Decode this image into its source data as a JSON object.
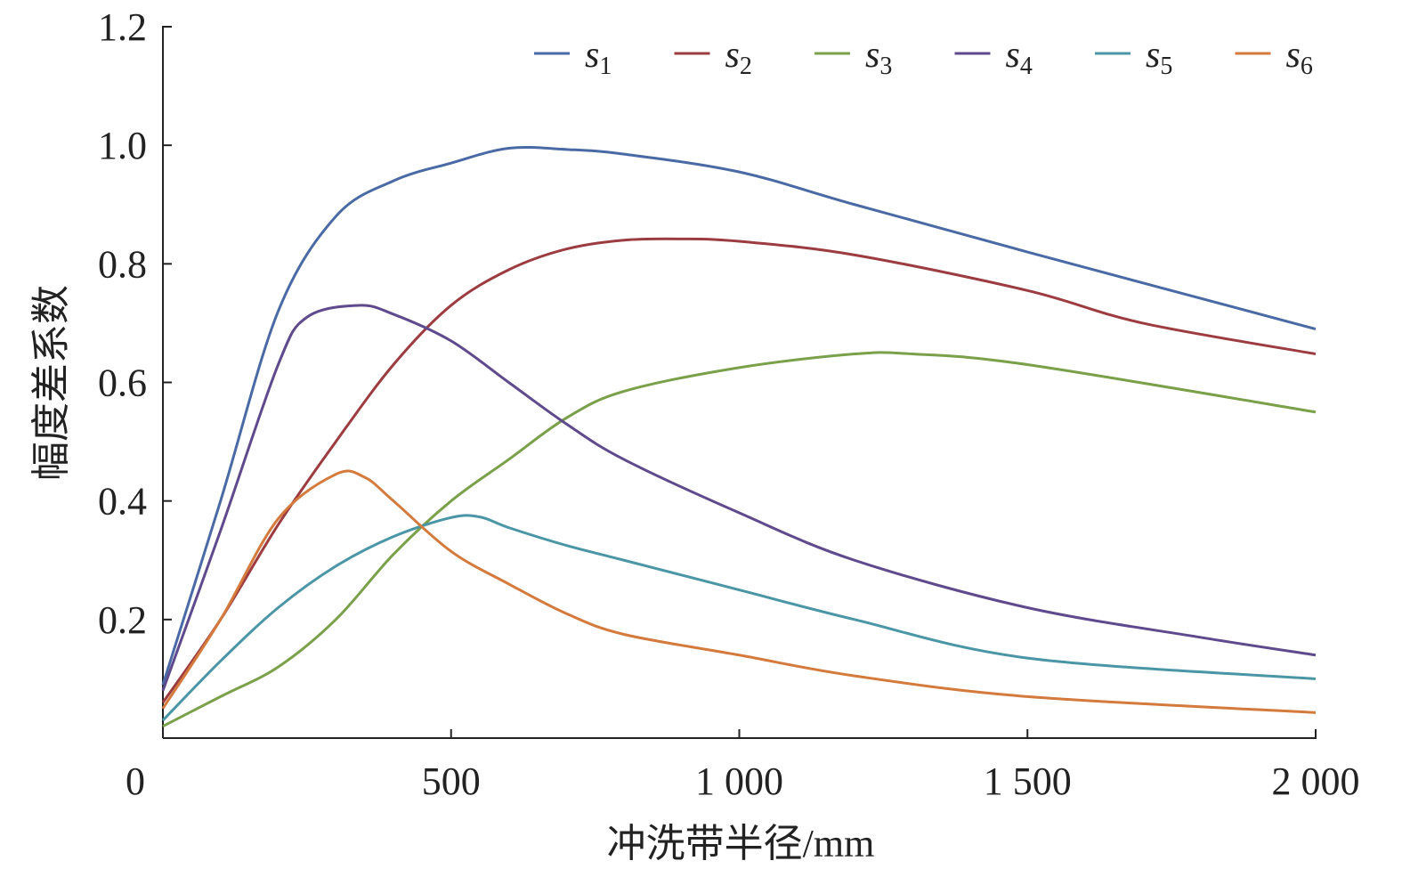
{
  "chart_data": {
    "type": "line",
    "title": "",
    "xlabel": "冲洗带半径/mm",
    "ylabel": "幅度差系数",
    "xlim": [
      0,
      2000
    ],
    "ylim": [
      0,
      1.2
    ],
    "xticks": [
      {
        "value": 0,
        "label": "0"
      },
      {
        "value": 500,
        "label": "500"
      },
      {
        "value": 1000,
        "label": "1 000"
      },
      {
        "value": 1500,
        "label": "1 500"
      },
      {
        "value": 2000,
        "label": "2 000"
      }
    ],
    "yticks": [
      {
        "value": 0.2,
        "label": "0.2"
      },
      {
        "value": 0.4,
        "label": "0.4"
      },
      {
        "value": 0.6,
        "label": "0.6"
      },
      {
        "value": 0.8,
        "label": "0.8"
      },
      {
        "value": 1.0,
        "label": "1.0"
      },
      {
        "value": 1.2,
        "label": "1.2"
      }
    ],
    "grid": false,
    "legend_position": "top-right",
    "series": [
      {
        "name": "s",
        "sub": "1",
        "color": "#4a6aa5",
        "x": [
          0,
          100,
          200,
          300,
          400,
          500,
          600,
          700,
          800,
          1000,
          1200,
          1500,
          2000
        ],
        "y": [
          0.09,
          0.4,
          0.72,
          0.88,
          0.94,
          0.97,
          0.995,
          0.993,
          0.985,
          0.955,
          0.9,
          0.82,
          0.69
        ]
      },
      {
        "name": "s",
        "sub": "2",
        "color": "#9c3c40",
        "x": [
          0,
          100,
          200,
          300,
          400,
          500,
          600,
          700,
          800,
          900,
          1000,
          1200,
          1500,
          1700,
          2000
        ],
        "y": [
          0.06,
          0.2,
          0.36,
          0.5,
          0.63,
          0.73,
          0.79,
          0.825,
          0.84,
          0.842,
          0.838,
          0.815,
          0.755,
          0.7,
          0.648
        ]
      },
      {
        "name": "s",
        "sub": "3",
        "color": "#7aa04a",
        "x": [
          0,
          100,
          200,
          300,
          400,
          500,
          600,
          700,
          800,
          1000,
          1200,
          1300,
          1500,
          2000
        ],
        "y": [
          0.02,
          0.07,
          0.12,
          0.2,
          0.31,
          0.4,
          0.47,
          0.54,
          0.585,
          0.625,
          0.648,
          0.648,
          0.63,
          0.55
        ]
      },
      {
        "name": "s",
        "sub": "4",
        "color": "#5e4a8c",
        "x": [
          0,
          100,
          200,
          250,
          340,
          400,
          500,
          600,
          700,
          800,
          1000,
          1200,
          1500,
          1800,
          2000
        ],
        "y": [
          0.08,
          0.35,
          0.63,
          0.71,
          0.73,
          0.715,
          0.67,
          0.6,
          0.53,
          0.47,
          0.38,
          0.3,
          0.22,
          0.17,
          0.14
        ]
      },
      {
        "name": "s",
        "sub": "5",
        "color": "#4a96a6",
        "x": [
          0,
          100,
          200,
          300,
          400,
          500,
          550,
          600,
          700,
          800,
          1000,
          1200,
          1500,
          2000
        ],
        "y": [
          0.03,
          0.13,
          0.22,
          0.29,
          0.34,
          0.372,
          0.373,
          0.355,
          0.325,
          0.3,
          0.25,
          0.2,
          0.135,
          0.1
        ]
      },
      {
        "name": "s",
        "sub": "6",
        "color": "#d47a3c",
        "x": [
          0,
          100,
          200,
          300,
          350,
          400,
          500,
          600,
          700,
          800,
          1000,
          1200,
          1500,
          2000
        ],
        "y": [
          0.05,
          0.2,
          0.37,
          0.445,
          0.44,
          0.4,
          0.315,
          0.26,
          0.21,
          0.175,
          0.14,
          0.105,
          0.07,
          0.043
        ]
      }
    ]
  }
}
